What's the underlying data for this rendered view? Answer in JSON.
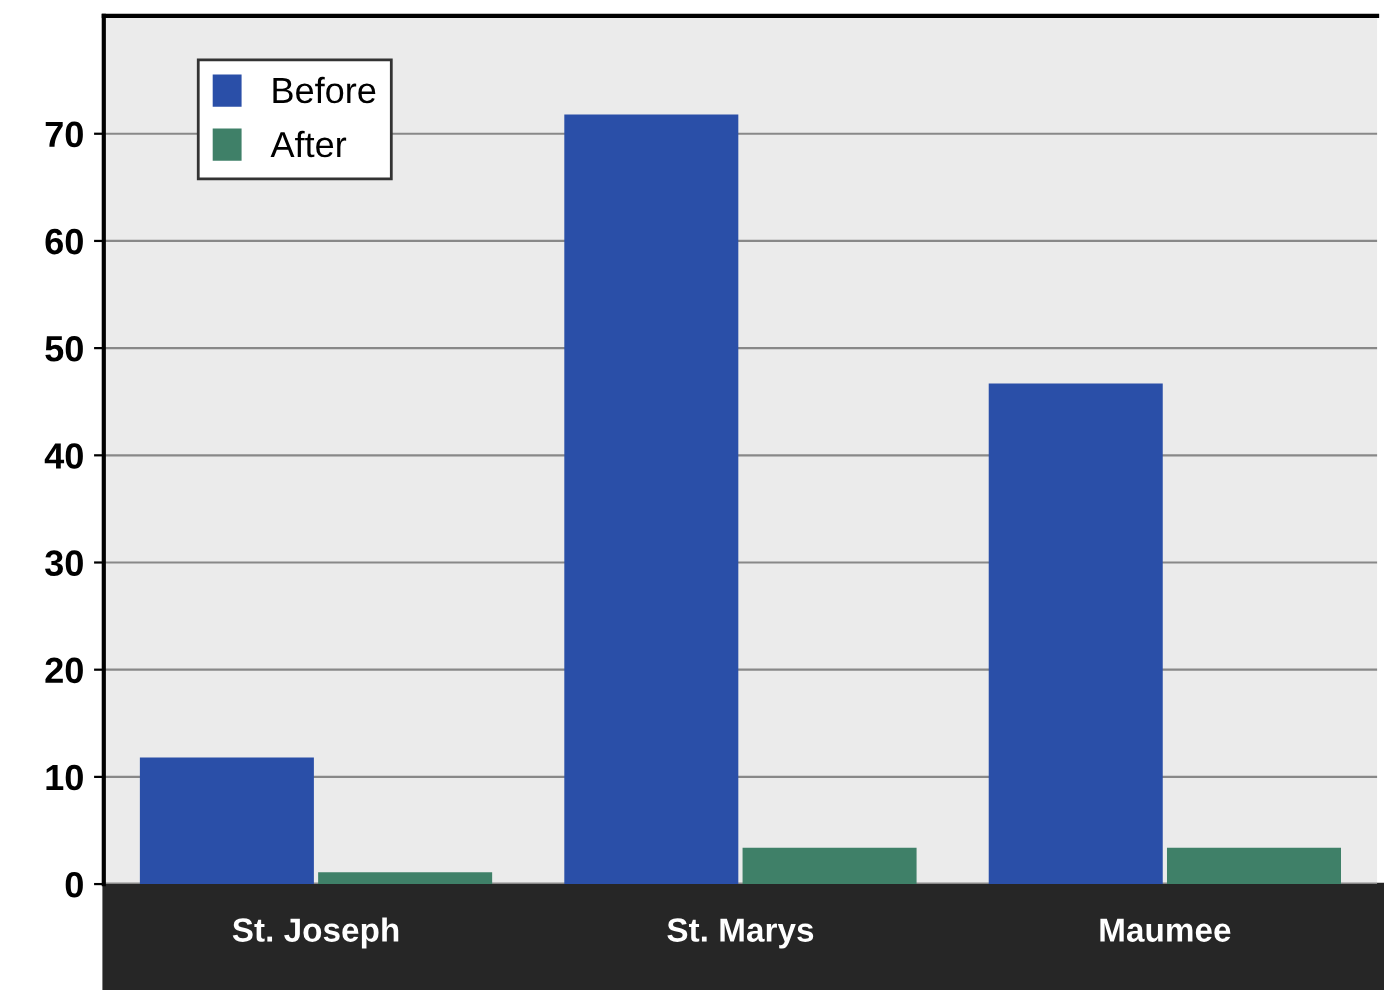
{
  "chart_data": {
    "type": "bar",
    "categories": [
      "St. Joseph",
      "St. Marys",
      "Maumee"
    ],
    "series": [
      {
        "name": "Before",
        "color": "#2a4fa8",
        "values": [
          11.8,
          71.8,
          46.7
        ]
      },
      {
        "name": "After",
        "color": "#3f8068",
        "values": [
          1.1,
          3.4,
          3.4
        ]
      }
    ],
    "ylim": [
      0,
      81
    ],
    "yticks": [
      0,
      10,
      20,
      30,
      40,
      50,
      60,
      70
    ],
    "grid": "y",
    "legend": "top left"
  }
}
